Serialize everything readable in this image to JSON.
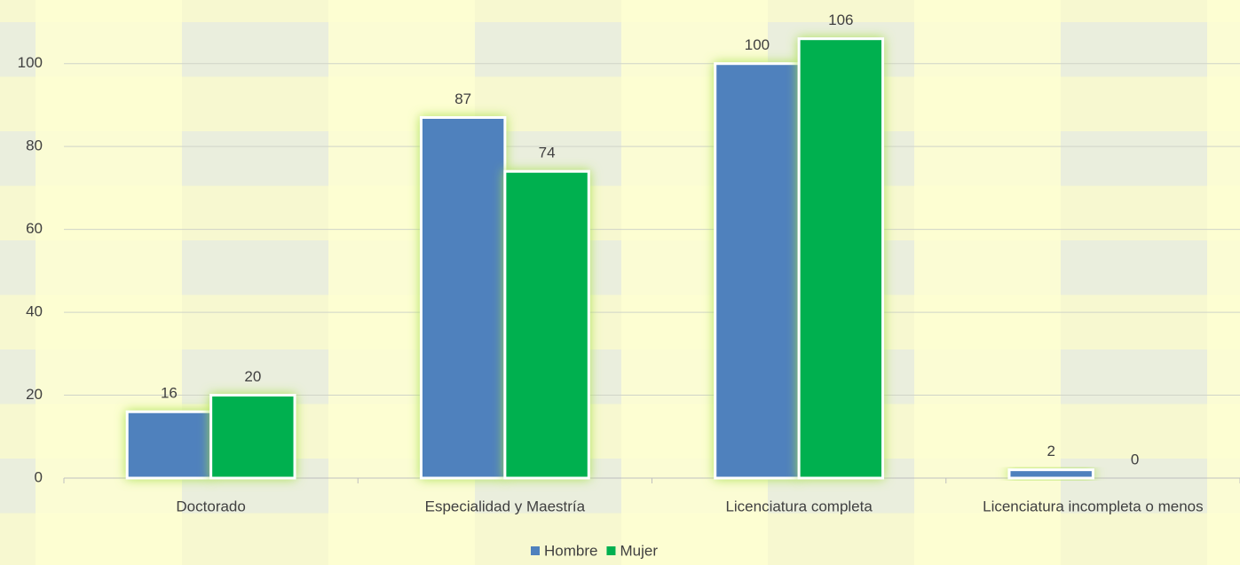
{
  "chart_data": {
    "type": "bar",
    "categories": [
      "Doctorado",
      "Especialidad y Maestría",
      "Licenciatura completa",
      "Licenciatura incompleta o menos"
    ],
    "series": [
      {
        "name": "Hombre",
        "color": "#4f81bd",
        "values": [
          16,
          87,
          100,
          2
        ]
      },
      {
        "name": "Mujer",
        "color": "#00b050",
        "values": [
          20,
          74,
          106,
          0
        ]
      }
    ],
    "ylim": [
      0,
      110
    ],
    "yticks": [
      0,
      20,
      40,
      60,
      80,
      100
    ],
    "grid": true,
    "legend": "bottom"
  }
}
